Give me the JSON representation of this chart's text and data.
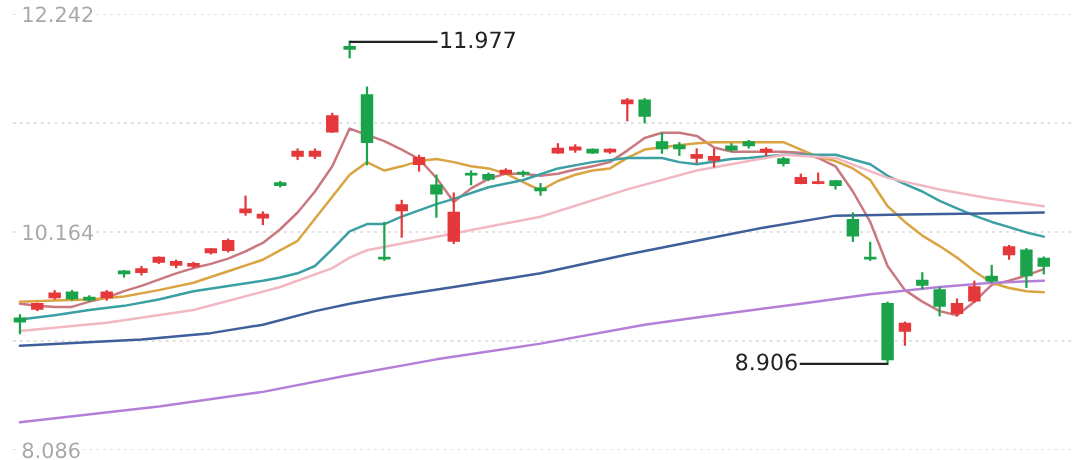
{
  "chart_data": {
    "type": "candlestick",
    "categories": [
      null,
      null,
      null,
      null,
      null,
      null,
      null,
      null,
      null,
      null,
      null,
      null,
      null,
      null,
      null,
      null,
      null,
      null,
      null,
      null,
      null,
      null,
      null,
      null,
      null,
      null,
      null,
      null,
      null,
      null,
      null,
      null,
      null,
      null,
      null,
      null,
      null,
      null,
      null,
      null,
      null,
      null,
      null,
      null,
      null,
      null,
      null,
      null,
      null,
      null,
      null,
      null,
      null,
      null,
      null,
      null,
      null,
      null,
      null,
      null
    ],
    "ohlc": [
      [
        9.34,
        9.37,
        9.2,
        9.31
      ],
      [
        9.43,
        9.48,
        9.42,
        9.48
      ],
      [
        9.54,
        9.6,
        9.53,
        9.58
      ],
      [
        9.59,
        9.6,
        9.52,
        9.53
      ],
      [
        9.54,
        9.55,
        9.51,
        9.52
      ],
      [
        9.54,
        9.6,
        9.52,
        9.59
      ],
      [
        9.79,
        9.79,
        9.74,
        9.77
      ],
      [
        9.78,
        9.83,
        9.76,
        9.81
      ],
      [
        9.88,
        9.92,
        9.87,
        9.92
      ],
      [
        9.85,
        9.89,
        9.83,
        9.88
      ],
      [
        9.84,
        9.87,
        9.83,
        9.86
      ],
      [
        9.97,
        10.0,
        9.96,
        10.0
      ],
      [
        9.99,
        10.09,
        9.98,
        10.08
      ],
      [
        10.35,
        10.5,
        10.33,
        10.38
      ],
      [
        10.3,
        10.35,
        10.24,
        10.33
      ],
      [
        10.63,
        10.64,
        10.6,
        10.61
      ],
      [
        10.89,
        10.95,
        10.86,
        10.93
      ],
      [
        10.89,
        10.95,
        10.87,
        10.93
      ],
      [
        11.12,
        11.29,
        11.12,
        11.27
      ],
      [
        11.93,
        11.977,
        11.83,
        11.91
      ],
      [
        11.47,
        11.54,
        10.81,
        11.02
      ],
      [
        9.92,
        10.25,
        9.9,
        9.91
      ],
      [
        10.37,
        10.46,
        10.12,
        10.42
      ],
      [
        10.81,
        10.89,
        10.75,
        10.87
      ],
      [
        10.61,
        10.7,
        10.31,
        10.53
      ],
      [
        10.08,
        10.53,
        10.06,
        10.35
      ],
      [
        10.72,
        10.74,
        10.62,
        10.71
      ],
      [
        10.71,
        10.72,
        10.66,
        10.67
      ],
      [
        10.72,
        10.76,
        10.72,
        10.75
      ],
      [
        10.73,
        10.74,
        10.7,
        10.72
      ],
      [
        10.58,
        10.62,
        10.52,
        10.56
      ],
      [
        10.92,
        11.0,
        10.92,
        10.96
      ],
      [
        10.95,
        10.99,
        10.93,
        10.97
      ],
      [
        10.95,
        10.95,
        10.92,
        10.92
      ],
      [
        10.93,
        10.95,
        10.92,
        10.95
      ],
      [
        11.39,
        11.43,
        11.23,
        11.42
      ],
      [
        11.42,
        11.43,
        11.21,
        11.27
      ],
      [
        11.02,
        11.1,
        10.92,
        10.96
      ],
      [
        10.99,
        11.01,
        10.9,
        10.96
      ],
      [
        10.87,
        10.95,
        10.83,
        10.9
      ],
      [
        10.85,
        10.95,
        10.79,
        10.88
      ],
      [
        10.98,
        11.0,
        10.94,
        10.95
      ],
      [
        11.02,
        11.03,
        10.97,
        10.99
      ],
      [
        10.93,
        10.96,
        10.9,
        10.95
      ],
      [
        10.86,
        10.87,
        10.8,
        10.82
      ],
      [
        10.63,
        10.71,
        10.63,
        10.68
      ],
      [
        10.63,
        10.72,
        10.63,
        10.64
      ],
      [
        10.65,
        10.65,
        10.58,
        10.61
      ],
      [
        10.28,
        10.34,
        10.08,
        10.13
      ],
      [
        9.92,
        10.06,
        9.9,
        9.91
      ],
      [
        9.48,
        9.49,
        8.906,
        8.95
      ],
      [
        9.22,
        9.3,
        9.09,
        9.29
      ],
      [
        9.7,
        9.77,
        9.63,
        9.66
      ],
      [
        9.61,
        9.63,
        9.37,
        9.46
      ],
      [
        9.39,
        9.52,
        9.37,
        9.48
      ],
      [
        9.51,
        9.69,
        9.5,
        9.64
      ],
      [
        9.74,
        9.84,
        9.69,
        9.7
      ],
      [
        9.95,
        10.03,
        9.91,
        10.02
      ],
      [
        9.99,
        10.0,
        9.64,
        9.75
      ],
      [
        9.91,
        9.92,
        9.77,
        9.84
      ]
    ],
    "colors": [
      "#1aa34a",
      "#e5383b",
      "#e5383b",
      "#1aa34a",
      "#1aa34a",
      "#e5383b",
      "#1aa34a",
      "#e5383b",
      "#e5383b",
      "#e5383b",
      "#e5383b",
      "#e5383b",
      "#e5383b",
      "#e5383b",
      "#e5383b",
      "#1aa34a",
      "#e5383b",
      "#e5383b",
      "#e5383b",
      "#1aa34a",
      "#1aa34a",
      "#1aa34a",
      "#e5383b",
      "#e5383b",
      "#1aa34a",
      "#e5383b",
      "#1aa34a",
      "#1aa34a",
      "#e5383b",
      "#1aa34a",
      "#1aa34a",
      "#e5383b",
      "#e5383b",
      "#1aa34a",
      "#e5383b",
      "#e5383b",
      "#1aa34a",
      "#1aa34a",
      "#1aa34a",
      "#e5383b",
      "#e5383b",
      "#1aa34a",
      "#1aa34a",
      "#e5383b",
      "#1aa34a",
      "#e5383b",
      "#e5383b",
      "#1aa34a",
      "#1aa34a",
      "#1aa34a",
      "#1aa34a",
      "#e5383b",
      "#1aa34a",
      "#1aa34a",
      "#e5383b",
      "#e5383b",
      "#1aa34a",
      "#e5383b",
      "#1aa34a",
      "#1aa34a"
    ],
    "series": [
      {
        "type": "line",
        "color": "#c9787f",
        "values": [
          9.48,
          9.46,
          9.45,
          9.45,
          9.5,
          9.54,
          9.6,
          9.65,
          9.71,
          9.77,
          9.82,
          9.86,
          9.91,
          9.98,
          10.06,
          10.19,
          10.35,
          10.55,
          10.79,
          11.15,
          null,
          11.03,
          10.95,
          10.86,
          10.68,
          10.45,
          10.58,
          10.67,
          10.72,
          10.72,
          10.7,
          10.72,
          10.76,
          10.79,
          10.83,
          10.94,
          11.06,
          11.11,
          11.11,
          11.08,
          10.97,
          10.93,
          10.93,
          10.93,
          10.93,
          10.92,
          10.87,
          10.79,
          10.55,
          10.26,
          9.84,
          9.61,
          9.5,
          9.41,
          9.37,
          9.5,
          9.66,
          9.7,
          9.75,
          9.81
        ]
      },
      {
        "type": "line",
        "color": "#d9a441",
        "values": [
          9.5,
          null,
          9.51,
          null,
          9.52,
          null,
          9.55,
          null,
          9.61,
          null,
          9.68,
          null,
          9.79,
          null,
          9.9,
          null,
          10.08,
          null,
          10.5,
          10.71,
          10.83,
          10.75,
          10.79,
          10.84,
          10.86,
          10.83,
          10.79,
          10.77,
          10.72,
          10.64,
          10.56,
          10.65,
          10.71,
          10.75,
          10.77,
          10.87,
          10.95,
          null,
          10.99,
          11.01,
          11.02,
          null,
          null,
          null,
          11.02,
          10.95,
          10.88,
          10.84,
          10.77,
          10.66,
          10.41,
          10.26,
          10.13,
          10.03,
          9.92,
          9.79,
          9.68,
          9.63,
          9.6,
          9.59
        ]
      },
      {
        "type": "line",
        "color": "#3aa0a4",
        "values": [
          9.33,
          null,
          9.37,
          null,
          9.42,
          null,
          9.46,
          null,
          9.52,
          null,
          9.6,
          null,
          9.65,
          null,
          9.7,
          9.73,
          9.77,
          9.84,
          10.0,
          10.17,
          10.24,
          10.24,
          10.31,
          null,
          10.43,
          10.48,
          null,
          10.59,
          null,
          10.66,
          null,
          10.77,
          null,
          10.83,
          null,
          10.87,
          null,
          10.87,
          10.83,
          10.81,
          null,
          10.86,
          10.87,
          null,
          10.9,
          null,
          null,
          10.9,
          null,
          10.81,
          10.7,
          10.62,
          10.55,
          10.46,
          10.39,
          10.32,
          10.26,
          10.21,
          10.16,
          10.12
        ]
      },
      {
        "type": "line",
        "color": "#f2b8c2",
        "values": [
          9.22,
          null,
          null,
          null,
          null,
          9.3,
          null,
          null,
          null,
          null,
          9.42,
          null,
          null,
          null,
          null,
          9.64,
          null,
          null,
          9.82,
          9.92,
          9.99,
          null,
          null,
          null,
          null,
          null,
          null,
          null,
          null,
          null,
          10.31,
          null,
          null,
          null,
          null,
          10.57,
          null,
          null,
          null,
          10.75,
          null,
          null,
          null,
          null,
          10.9,
          null,
          null,
          10.87,
          null,
          null,
          10.68,
          null,
          null,
          10.57,
          null,
          null,
          10.48,
          null,
          null,
          10.41
        ]
      },
      {
        "type": "line",
        "color": "#3e5f99",
        "values": [
          9.08,
          null,
          null,
          null,
          null,
          null,
          null,
          9.14,
          null,
          null,
          null,
          9.2,
          null,
          null,
          9.28,
          null,
          null,
          9.41,
          null,
          9.48,
          null,
          9.54,
          null,
          null,
          null,
          9.64,
          null,
          null,
          null,
          null,
          9.77,
          null,
          null,
          null,
          null,
          9.95,
          null,
          null,
          null,
          10.08,
          null,
          null,
          null,
          10.21,
          null,
          null,
          null,
          10.32,
          null,
          null,
          null,
          10.33,
          null,
          null,
          null,
          null,
          null,
          null,
          null,
          10.35
        ]
      },
      {
        "type": "line",
        "color": "#b47fd8",
        "values": [
          8.35,
          null,
          null,
          null,
          null,
          null,
          null,
          null,
          8.5,
          null,
          null,
          null,
          null,
          null,
          8.64,
          null,
          null,
          null,
          null,
          8.8,
          null,
          null,
          null,
          null,
          8.95,
          null,
          null,
          null,
          null,
          null,
          9.1,
          null,
          null,
          null,
          null,
          null,
          9.28,
          null,
          null,
          9.35,
          null,
          null,
          null,
          null,
          null,
          9.48,
          null,
          null,
          null,
          9.57,
          null,
          null,
          null,
          9.64,
          null,
          null,
          9.68,
          null,
          null,
          9.7
        ]
      }
    ],
    "annotations": [
      "11.977",
      "8.906"
    ],
    "ylim": [
      8.086,
      12.242
    ],
    "yticks": [
      12.242,
      {
        "value": 11.203,
        "label": null
      },
      10.164,
      {
        "value": 9.125,
        "label": null
      },
      8.086
    ],
    "grid": "y",
    "tick_labels": "y"
  }
}
